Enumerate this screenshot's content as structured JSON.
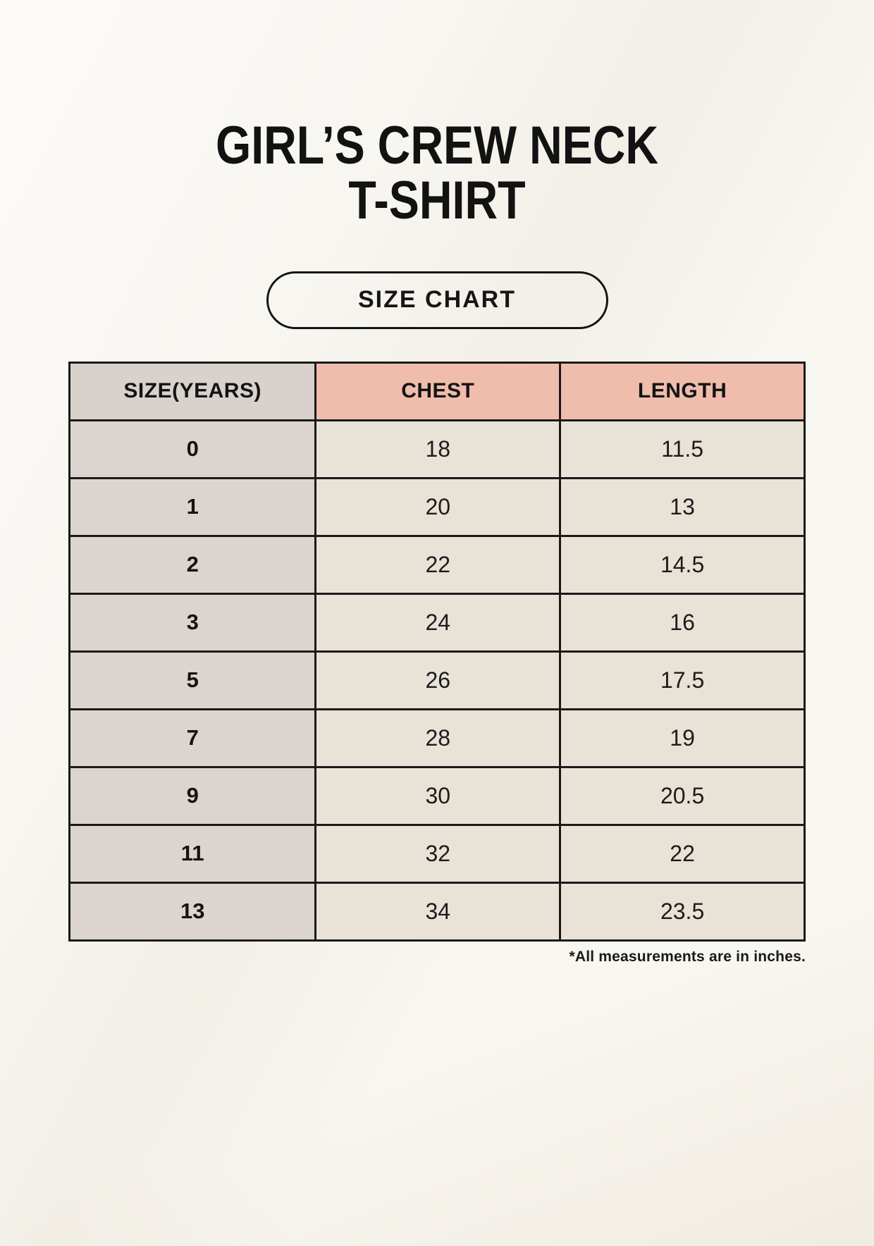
{
  "header": {
    "title_line1": "GIRL’S CREW NECK",
    "title_line2": "T-SHIRT",
    "badge_label": "SIZE CHART"
  },
  "table": {
    "headers": [
      "SIZE(YEARS)",
      "CHEST",
      "LENGTH"
    ],
    "rows": [
      {
        "size": "0",
        "chest": "18",
        "length": "11.5"
      },
      {
        "size": "1",
        "chest": "20",
        "length": "13"
      },
      {
        "size": "2",
        "chest": "22",
        "length": "14.5"
      },
      {
        "size": "3",
        "chest": "24",
        "length": "16"
      },
      {
        "size": "5",
        "chest": "26",
        "length": "17.5"
      },
      {
        "size": "7",
        "chest": "28",
        "length": "19"
      },
      {
        "size": "9",
        "chest": "30",
        "length": "20.5"
      },
      {
        "size": "11",
        "chest": "32",
        "length": "22"
      },
      {
        "size": "13",
        "chest": "34",
        "length": "23.5"
      }
    ],
    "units_note": "*All measurements are in inches."
  },
  "chart_data": {
    "type": "table",
    "title": "GIRL’S CREW NECK T-SHIRT — SIZE CHART",
    "columns": [
      "SIZE(YEARS)",
      "CHEST",
      "LENGTH"
    ],
    "units": "inches",
    "rows": [
      [
        "0",
        18,
        11.5
      ],
      [
        "1",
        20,
        13
      ],
      [
        "2",
        22,
        14.5
      ],
      [
        "3",
        24,
        16
      ],
      [
        "5",
        26,
        17.5
      ],
      [
        "7",
        28,
        19
      ],
      [
        "9",
        30,
        20.5
      ],
      [
        "11",
        32,
        22
      ],
      [
        "13",
        34,
        23.5
      ]
    ]
  },
  "colors": {
    "background": "#F5F1E9",
    "accent_salmon": "#F0BDAC",
    "header_gray": "#D9D2CC",
    "row_label_bg": "#DCD5CF",
    "cell_bg": "#E9E2D7",
    "border": "#1A1A1A",
    "text": "#141414"
  }
}
